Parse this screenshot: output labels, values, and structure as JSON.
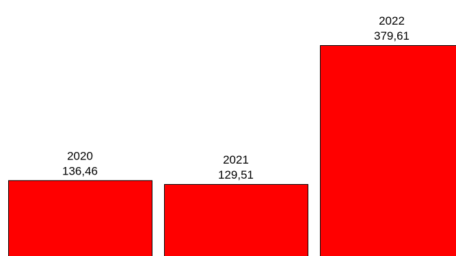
{
  "chart_data": {
    "type": "bar",
    "categories": [
      "2020",
      "2021",
      "2022"
    ],
    "values": [
      136.46,
      129.51,
      379.61
    ],
    "value_labels": [
      "136,46",
      "129,51",
      "379,61"
    ],
    "colors": {
      "bar_fill": "#ff0000",
      "bar_stroke": "#000000",
      "label_text": "#000000",
      "background": "#ffffff"
    }
  }
}
